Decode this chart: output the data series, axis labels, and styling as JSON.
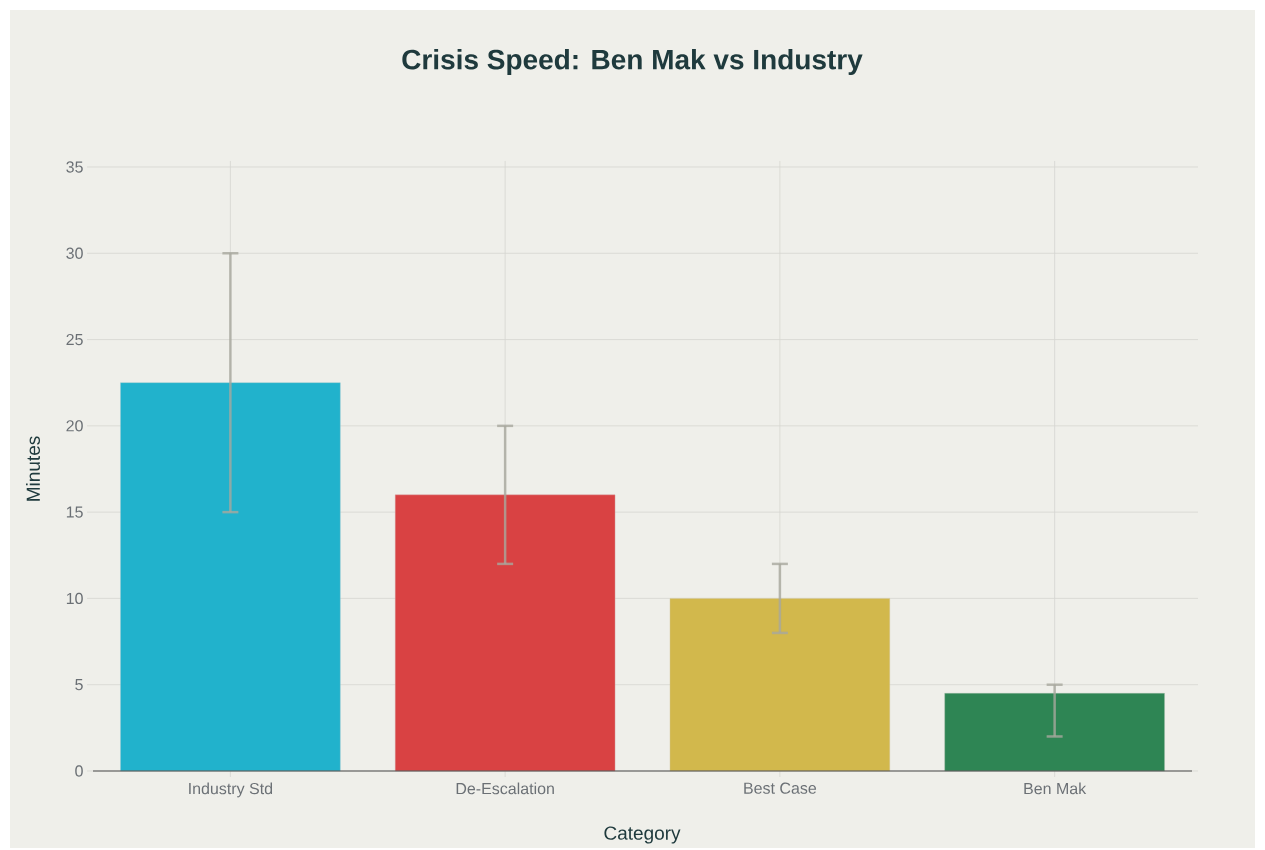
{
  "chart_data": {
    "type": "bar",
    "title": "Crisis Speed: Ben Mak vs Industry",
    "xlabel": "Category",
    "ylabel": "Minutes",
    "categories": [
      "Industry Std",
      "De-Escalation",
      "Best Case",
      "Ben Mak"
    ],
    "values": [
      22.5,
      16,
      10,
      4.5
    ],
    "colors": [
      "#21b2cc",
      "#d94243",
      "#d2b84c",
      "#2e8554"
    ],
    "errors": [
      [
        15,
        30
      ],
      [
        12,
        20
      ],
      [
        8,
        12
      ],
      [
        2,
        5
      ]
    ],
    "ylim": [
      0,
      35
    ],
    "yticks": [
      0,
      5,
      10,
      15,
      20,
      25,
      30,
      35
    ],
    "grid": true
  }
}
